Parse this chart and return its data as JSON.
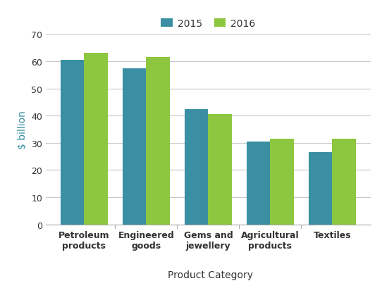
{
  "categories": [
    "Petroleum\nproducts",
    "Engineered\ngoods",
    "Gems and\njewellery",
    "Agricultural\nproducts",
    "Textiles"
  ],
  "values_2015": [
    60.5,
    57.5,
    42.5,
    30.5,
    26.5
  ],
  "values_2016": [
    63.0,
    61.5,
    40.5,
    31.5,
    31.5
  ],
  "color_2015": "#3a8fa3",
  "color_2016": "#8dc63f",
  "ylabel": "$ billion",
  "xlabel": "Product Category",
  "ylim": [
    0,
    70
  ],
  "yticks": [
    0,
    10,
    20,
    30,
    40,
    50,
    60,
    70
  ],
  "legend_labels": [
    "2015",
    "2016"
  ],
  "bar_width": 0.38,
  "ylabel_color": "#3a8fa3",
  "xlabel_color": "#333333",
  "tick_label_color": "#333333",
  "legend_text_color": "#333333",
  "grid_color": "#c8c8c8",
  "spine_color": "#aaaaaa"
}
